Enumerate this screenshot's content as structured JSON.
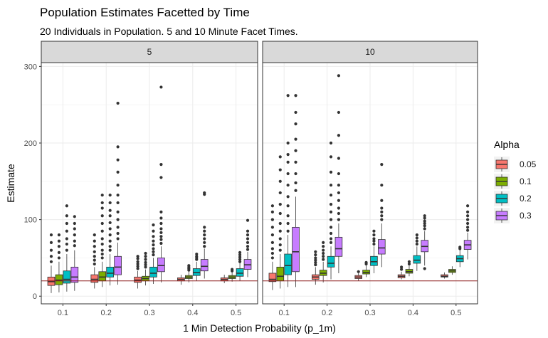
{
  "title": "Population Estimates Facetted by Time",
  "subtitle": "20 Individuals in Population. 5 and 10 Minute Facet Times.",
  "chart_data": {
    "type": "box",
    "xlabel": "1 Min Detection Probability (p_1m)",
    "ylabel": "Estimate",
    "ylim": [
      -10,
      305
    ],
    "yticks": [
      0,
      100,
      200,
      300
    ],
    "categories": [
      "0.1",
      "0.2",
      "0.3",
      "0.4",
      "0.5"
    ],
    "reference_line": 20,
    "legend": {
      "title": "Alpha",
      "position": "right"
    },
    "colors": {
      "0.05": "#F8766D",
      "0.1": "#7CAE00",
      "0.2": "#00BFC4",
      "0.3": "#C77CFF",
      "reference": "#8B1A1A"
    },
    "series": [
      {
        "name": "0.05"
      },
      {
        "name": "0.1"
      },
      {
        "name": "0.2"
      },
      {
        "name": "0.3"
      }
    ],
    "facets": [
      {
        "label": "5",
        "groups": {
          "0.1": [
            {
              "lo": 4,
              "q1": 14,
              "med": 19,
              "q3": 25,
              "hi": 40,
              "out": [
                45,
                52,
                60,
                70,
                80
              ]
            },
            {
              "lo": 5,
              "q1": 15,
              "med": 21,
              "q3": 28,
              "hi": 45,
              "out": [
                50,
                57,
                65,
                72,
                80
              ]
            },
            {
              "lo": 6,
              "q1": 17,
              "med": 22,
              "q3": 33,
              "hi": 55,
              "out": [
                60,
                68,
                75,
                85,
                95,
                105,
                118
              ]
            },
            {
              "lo": 7,
              "q1": 18,
              "med": 25,
              "q3": 38,
              "hi": 60,
              "out": [
                66,
                72,
                80,
                88,
                95,
                104
              ]
            }
          ],
          "0.2": [
            {
              "lo": 10,
              "q1": 18,
              "med": 22,
              "q3": 28,
              "hi": 38,
              "out": [
                42,
                47,
                52,
                58,
                65,
                72,
                80
              ]
            },
            {
              "lo": 12,
              "q1": 20,
              "med": 25,
              "q3": 32,
              "hi": 45,
              "out": [
                50,
                55,
                60,
                68,
                75,
                85,
                95,
                105,
                115,
                122,
                132
              ]
            },
            {
              "lo": 14,
              "q1": 25,
              "med": 30,
              "q3": 38,
              "hi": 55,
              "out": [
                60,
                65,
                72,
                80,
                88,
                96,
                105,
                112,
                122,
                132
              ]
            },
            {
              "lo": 15,
              "q1": 28,
              "med": 38,
              "q3": 52,
              "hi": 70,
              "out": [
                75,
                82,
                90,
                100,
                110,
                122,
                132,
                145,
                162,
                178,
                195,
                252
              ]
            }
          ],
          "0.3": [
            {
              "lo": 10,
              "q1": 18,
              "med": 21,
              "q3": 25,
              "hi": 33,
              "out": [
                36,
                39,
                42,
                45,
                49,
                52
              ]
            },
            {
              "lo": 14,
              "q1": 20,
              "med": 23,
              "q3": 26,
              "hi": 35,
              "out": [
                38,
                41,
                44,
                48,
                52,
                56
              ]
            },
            {
              "lo": 16,
              "q1": 25,
              "med": 30,
              "q3": 38,
              "hi": 50,
              "out": [
                54,
                58,
                62,
                67,
                72,
                78,
                85,
                93
              ]
            },
            {
              "lo": 18,
              "q1": 32,
              "med": 40,
              "q3": 50,
              "hi": 65,
              "out": [
                69,
                74,
                78,
                83,
                88,
                95,
                102,
                110,
                155,
                172,
                273
              ]
            }
          ],
          "0.4": [
            {
              "lo": 15,
              "q1": 20,
              "med": 22,
              "q3": 24,
              "hi": 28
            },
            {
              "lo": 18,
              "q1": 23,
              "med": 25,
              "q3": 27,
              "hi": 32,
              "out": [
                34,
                36,
                38,
                40
              ]
            },
            {
              "lo": 20,
              "q1": 27,
              "med": 31,
              "q3": 36,
              "hi": 45,
              "out": [
                48,
                50,
                52,
                55
              ]
            },
            {
              "lo": 23,
              "q1": 33,
              "med": 39,
              "q3": 48,
              "hi": 62,
              "out": [
                65,
                70,
                75,
                80,
                85,
                90,
                133,
                135
              ]
            }
          ],
          "0.5": [
            {
              "lo": 17,
              "q1": 20,
              "med": 22,
              "q3": 24,
              "hi": 28
            },
            {
              "lo": 19,
              "q1": 23,
              "med": 25,
              "q3": 27,
              "hi": 31,
              "out": [
                33,
                35
              ]
            },
            {
              "lo": 20,
              "q1": 26,
              "med": 30,
              "q3": 36,
              "hi": 43,
              "out": [
                45,
                48,
                51,
                54,
                57
              ]
            },
            {
              "lo": 25,
              "q1": 35,
              "med": 41,
              "q3": 48,
              "hi": 58,
              "out": [
                61,
                65,
                70,
                75,
                80,
                85,
                99
              ]
            }
          ]
        }
      },
      {
        "label": "10",
        "groups": {
          "0.1": [
            {
              "lo": 8,
              "q1": 19,
              "med": 22,
              "q3": 30,
              "hi": 45,
              "out": [
                50,
                56,
                62,
                70,
                80,
                90,
                100,
                110,
                118
              ]
            },
            {
              "lo": 10,
              "q1": 20,
              "med": 26,
              "q3": 38,
              "hi": 55,
              "out": [
                60,
                67,
                75,
                85,
                95,
                108,
                120,
                135,
                150,
                165,
                182
              ]
            },
            {
              "lo": 12,
              "q1": 28,
              "med": 40,
              "q3": 55,
              "hi": 80,
              "out": [
                85,
                95,
                105,
                118,
                130,
                145,
                160,
                175,
                185,
                200,
                262
              ]
            },
            {
              "lo": 12,
              "q1": 32,
              "med": 58,
              "q3": 90,
              "hi": 130,
              "out": [
                138,
                148,
                160,
                175,
                190,
                205,
                225,
                240,
                262
              ]
            }
          ],
          "0.2": [
            {
              "lo": 15,
              "q1": 22,
              "med": 25,
              "q3": 28,
              "hi": 38,
              "out": [
                41,
                44,
                47,
                50,
                54,
                58
              ]
            },
            {
              "lo": 18,
              "q1": 27,
              "med": 30,
              "q3": 34,
              "hi": 45,
              "out": [
                48,
                52,
                56,
                60,
                65,
                70
              ]
            },
            {
              "lo": 22,
              "q1": 38,
              "med": 43,
              "q3": 52,
              "hi": 65,
              "out": [
                70,
                75,
                82,
                90,
                100,
                110,
                120,
                132,
                145,
                162,
                182,
                200
              ]
            },
            {
              "lo": 30,
              "q1": 52,
              "med": 62,
              "q3": 77,
              "hi": 95,
              "out": [
                100,
                108,
                115,
                125,
                135,
                145,
                160,
                180,
                210,
                240,
                288
              ]
            }
          ],
          "0.3": [
            {
              "lo": 20,
              "q1": 23,
              "med": 25,
              "q3": 27,
              "hi": 30,
              "out": [
                32
              ]
            },
            {
              "lo": 25,
              "q1": 29,
              "med": 31,
              "q3": 34,
              "hi": 40,
              "out": [
                42,
                44
              ]
            },
            {
              "lo": 30,
              "q1": 40,
              "med": 45,
              "q3": 52,
              "hi": 65,
              "out": [
                68,
                72,
                75,
                80,
                85
              ]
            },
            {
              "lo": 38,
              "q1": 55,
              "med": 63,
              "q3": 74,
              "hi": 95,
              "out": [
                100,
                105,
                110,
                115,
                125,
                145,
                172
              ]
            }
          ],
          "0.4": [
            {
              "lo": 22,
              "q1": 24,
              "med": 26,
              "q3": 28,
              "hi": 32,
              "out": [
                35,
                38
              ]
            },
            {
              "lo": 26,
              "q1": 30,
              "med": 32,
              "q3": 35,
              "hi": 40,
              "out": [
                42,
                45
              ]
            },
            {
              "lo": 33,
              "q1": 43,
              "med": 47,
              "q3": 53,
              "hi": 65,
              "out": [
                68,
                72,
                76,
                80
              ]
            },
            {
              "lo": 40,
              "q1": 58,
              "med": 65,
              "q3": 73,
              "hi": 85,
              "out": [
                36,
                88,
                92,
                95,
                98,
                102,
                105
              ]
            }
          ],
          "0.5": [
            {
              "lo": 23,
              "q1": 25,
              "med": 26,
              "q3": 28,
              "hi": 31
            },
            {
              "lo": 28,
              "q1": 31,
              "med": 33,
              "q3": 35,
              "hi": 39
            },
            {
              "lo": 38,
              "q1": 45,
              "med": 49,
              "q3": 53,
              "hi": 60,
              "out": [
                62,
                64
              ]
            },
            {
              "lo": 48,
              "q1": 61,
              "med": 67,
              "q3": 73,
              "hi": 83,
              "out": [
                86,
                90,
                95,
                100,
                105,
                110,
                118
              ]
            }
          ]
        }
      }
    ]
  }
}
